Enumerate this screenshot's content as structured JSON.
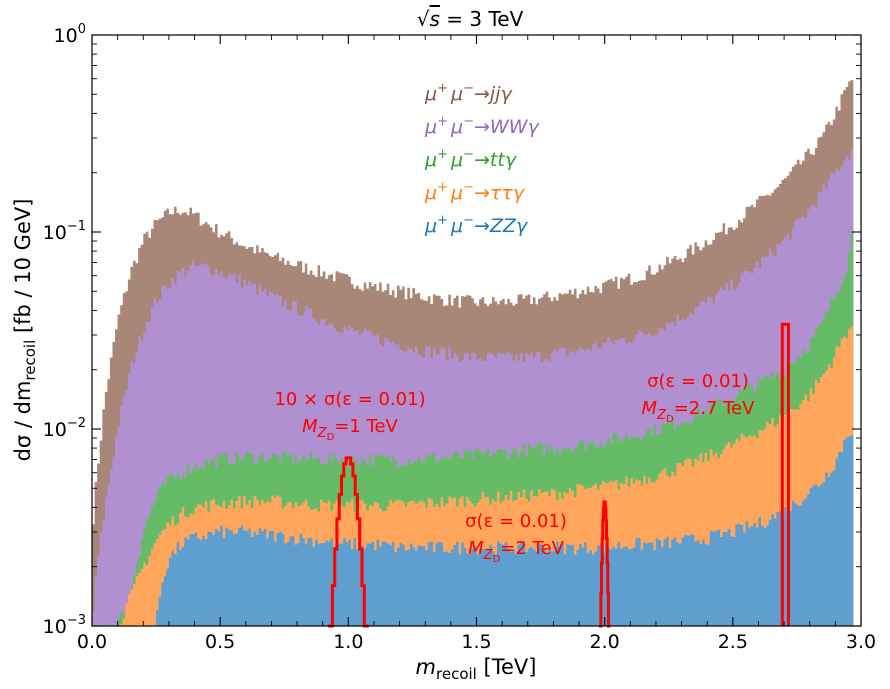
{
  "chart_data": {
    "type": "area",
    "title": "√s = 3 TeV",
    "title_parts": {
      "root": "s",
      "rest": " = 3 TeV"
    },
    "xlabel": {
      "main": "m",
      "sub": "recoil",
      "unit": " [TeV]"
    },
    "ylabel": {
      "pre": "dσ / dm",
      "sub": "recoil",
      "post": " [fb / 10 GeV]"
    },
    "xlim": [
      0.0,
      3.0
    ],
    "ylim": [
      0.001,
      1.0
    ],
    "yscale": "log",
    "x_ticks": [
      "0.0",
      "0.5",
      "1.0",
      "1.5",
      "2.0",
      "2.5",
      "3.0"
    ],
    "x_tick_values": [
      0,
      0.5,
      1.0,
      1.5,
      2.0,
      2.5,
      3.0
    ],
    "y_ticks": [
      {
        "value": 1.0,
        "base": "10",
        "exp": "0"
      },
      {
        "value": 0.1,
        "base": "10",
        "exp": "−1"
      },
      {
        "value": 0.01,
        "base": "10",
        "exp": "−2"
      },
      {
        "value": 0.001,
        "base": "10",
        "exp": "−3"
      }
    ],
    "bin_width": 0.01,
    "stack_note": "stacked histograms; values are cumulative upper edges in fb/10 GeV",
    "series": [
      {
        "name": "μ+μ−→jjγ",
        "color": "#a88779",
        "x": [
          0.0,
          0.02,
          0.05,
          0.1,
          0.15,
          0.2,
          0.25,
          0.3,
          0.35,
          0.4,
          0.45,
          0.5,
          0.6,
          0.7,
          0.8,
          0.9,
          1.0,
          1.1,
          1.2,
          1.3,
          1.4,
          1.5,
          1.6,
          1.7,
          1.8,
          1.9,
          2.0,
          2.1,
          2.2,
          2.3,
          2.4,
          2.5,
          2.6,
          2.7,
          2.8,
          2.85,
          2.9,
          2.95,
          2.97
        ],
        "values": [
          0.003,
          0.006,
          0.014,
          0.035,
          0.062,
          0.09,
          0.11,
          0.125,
          0.13,
          0.122,
          0.11,
          0.1,
          0.085,
          0.075,
          0.068,
          0.062,
          0.057,
          0.053,
          0.05,
          0.047,
          0.045,
          0.044,
          0.044,
          0.045,
          0.047,
          0.05,
          0.053,
          0.058,
          0.065,
          0.075,
          0.09,
          0.11,
          0.14,
          0.18,
          0.25,
          0.3,
          0.4,
          0.55,
          0.6
        ]
      },
      {
        "name": "μ+μ−→WWγ",
        "color": "#b090d0",
        "x": [
          0.0,
          0.02,
          0.05,
          0.1,
          0.15,
          0.2,
          0.25,
          0.3,
          0.35,
          0.4,
          0.45,
          0.5,
          0.6,
          0.7,
          0.8,
          0.9,
          1.0,
          1.1,
          1.2,
          1.3,
          1.4,
          1.5,
          1.6,
          1.7,
          1.8,
          1.9,
          2.0,
          2.1,
          2.2,
          2.3,
          2.4,
          2.5,
          2.6,
          2.7,
          2.8,
          2.85,
          2.9,
          2.95,
          2.97
        ],
        "values": [
          0.001,
          0.002,
          0.004,
          0.01,
          0.02,
          0.032,
          0.045,
          0.055,
          0.063,
          0.067,
          0.066,
          0.063,
          0.055,
          0.047,
          0.041,
          0.036,
          0.032,
          0.029,
          0.027,
          0.025,
          0.024,
          0.023,
          0.023,
          0.023,
          0.024,
          0.025,
          0.027,
          0.029,
          0.032,
          0.037,
          0.044,
          0.054,
          0.068,
          0.09,
          0.13,
          0.16,
          0.2,
          0.25,
          0.26
        ]
      },
      {
        "name": "μ+μ−→ttγ",
        "color": "#66bb66",
        "x": [
          0.1,
          0.15,
          0.2,
          0.25,
          0.3,
          0.35,
          0.4,
          0.5,
          0.6,
          0.7,
          0.8,
          0.9,
          1.0,
          1.1,
          1.2,
          1.3,
          1.4,
          1.5,
          1.6,
          1.7,
          1.8,
          1.9,
          2.0,
          2.1,
          2.2,
          2.3,
          2.4,
          2.5,
          2.6,
          2.7,
          2.8,
          2.85,
          2.9,
          2.95,
          2.97
        ],
        "values": [
          0.001,
          0.0015,
          0.003,
          0.0045,
          0.0055,
          0.006,
          0.0065,
          0.007,
          0.0072,
          0.0072,
          0.0071,
          0.007,
          0.007,
          0.007,
          0.007,
          0.0071,
          0.0072,
          0.0074,
          0.0076,
          0.0078,
          0.008,
          0.0083,
          0.0087,
          0.0092,
          0.01,
          0.011,
          0.0125,
          0.0145,
          0.017,
          0.02,
          0.027,
          0.034,
          0.048,
          0.07,
          0.11
        ]
      },
      {
        "name": "μ+μ−→ττγ",
        "color": "#ffa55c",
        "x": [
          0.1,
          0.15,
          0.2,
          0.25,
          0.3,
          0.35,
          0.4,
          0.5,
          0.6,
          0.7,
          0.8,
          0.9,
          1.0,
          1.1,
          1.2,
          1.3,
          1.4,
          1.5,
          1.6,
          1.7,
          1.8,
          1.9,
          2.0,
          2.1,
          2.2,
          2.3,
          2.4,
          2.5,
          2.6,
          2.7,
          2.8,
          2.85,
          2.9,
          2.95,
          2.97
        ],
        "values": [
          0.001,
          0.0014,
          0.002,
          0.0027,
          0.0033,
          0.0037,
          0.004,
          0.0042,
          0.0043,
          0.0043,
          0.0042,
          0.0041,
          0.0041,
          0.0041,
          0.0041,
          0.0042,
          0.0043,
          0.0044,
          0.0045,
          0.0046,
          0.0047,
          0.0049,
          0.0051,
          0.0054,
          0.0058,
          0.0064,
          0.0072,
          0.0083,
          0.0098,
          0.0115,
          0.015,
          0.0185,
          0.024,
          0.032,
          0.034
        ]
      },
      {
        "name": "μ+μ−→ZZγ",
        "color": "#5f9fcf",
        "x": [
          0.25,
          0.27,
          0.3,
          0.35,
          0.4,
          0.5,
          0.6,
          0.7,
          0.8,
          0.9,
          1.0,
          1.1,
          1.2,
          1.3,
          1.4,
          1.5,
          1.6,
          1.7,
          1.8,
          1.9,
          2.0,
          2.1,
          2.2,
          2.3,
          2.4,
          2.5,
          2.6,
          2.7,
          2.8,
          2.85,
          2.9,
          2.95,
          2.97
        ],
        "values": [
          0.001,
          0.0016,
          0.0022,
          0.0026,
          0.0028,
          0.003,
          0.003,
          0.0029,
          0.0028,
          0.0027,
          0.0026,
          0.0026,
          0.0025,
          0.0025,
          0.0025,
          0.0025,
          0.0025,
          0.0025,
          0.0025,
          0.0025,
          0.0025,
          0.0026,
          0.0026,
          0.0027,
          0.0028,
          0.003,
          0.0033,
          0.0038,
          0.0048,
          0.0055,
          0.0068,
          0.0095,
          0.01
        ]
      }
    ],
    "signals": [
      {
        "label": "10 × σ(ε = 0.01)",
        "mass_label": {
          "pre": "M",
          "sub": "Z",
          "subsub": "D",
          "post": "=1 TeV"
        },
        "center": 1.0,
        "peak": 0.0072,
        "half_width": 0.08,
        "color": "#ff0000",
        "shape": "peak"
      },
      {
        "label": "σ(ε = 0.01)",
        "mass_label": {
          "pre": "M",
          "sub": "Z",
          "subsub": "D",
          "post": "=2 TeV"
        },
        "center": 2.0,
        "peak": 0.0043,
        "half_width": 0.022,
        "color": "#ff0000",
        "shape": "peak"
      },
      {
        "label": "σ(ε = 0.01)",
        "mass_label": {
          "pre": "M",
          "sub": "Z",
          "subsub": "D",
          "post": "=2.7 TeV"
        },
        "center": 2.705,
        "peak": 0.034,
        "half_width": 0.012,
        "color": "#ff0000",
        "shape": "box"
      }
    ],
    "legend": {
      "placement": "top-center",
      "order": [
        "μ+μ−→jjγ",
        "μ+μ−→WWγ",
        "μ+μ−→ttγ",
        "μ+μ−→ττγ",
        "μ+μ−→ZZγ"
      ],
      "entries": [
        {
          "pre": "μ",
          "sup1": "+",
          "mid": "μ",
          "sup2": "−",
          "post": "→jjγ",
          "color": "#8c564b"
        },
        {
          "pre": "μ",
          "sup1": "+",
          "mid": "μ",
          "sup2": "−",
          "post": "→WWγ",
          "color": "#9467bd"
        },
        {
          "pre": "μ",
          "sup1": "+",
          "mid": "μ",
          "sup2": "−",
          "post": "→ttγ",
          "color": "#2ca02c"
        },
        {
          "pre": "μ",
          "sup1": "+",
          "mid": "μ",
          "sup2": "−",
          "post": "→ττγ",
          "color": "#ff7f0e"
        },
        {
          "pre": "μ",
          "sup1": "+",
          "mid": "μ",
          "sup2": "−",
          "post": "→ZZγ",
          "color": "#1f77b4"
        }
      ]
    }
  }
}
